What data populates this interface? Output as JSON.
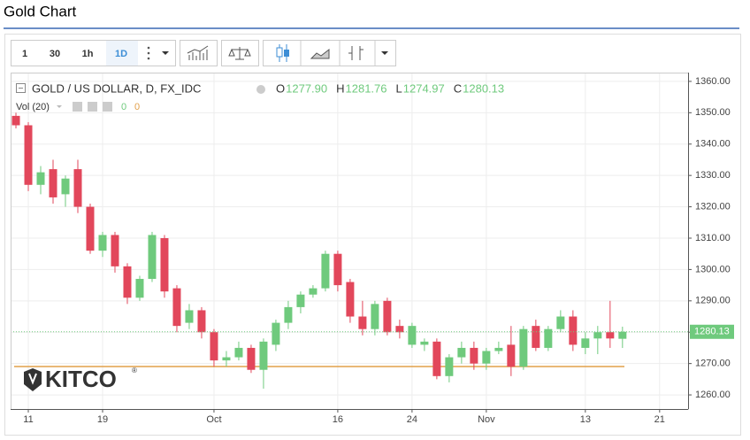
{
  "header": {
    "title": "Gold Chart"
  },
  "toolbar": {
    "intervals": [
      "1",
      "30",
      "1h",
      "1D"
    ]
  },
  "chart_data": {
    "type": "candlestick",
    "symbol": "GOLD / US DOLLAR, D, FX_IDC",
    "legend": [
      {
        "key": "O",
        "label": "1277.90"
      },
      {
        "key": "H",
        "label": "1281.76"
      },
      {
        "key": "L",
        "label": "1274.97"
      },
      {
        "key": "C",
        "label": "1280.13"
      }
    ],
    "volume_label": "Vol (20)",
    "volume_values": [
      "0",
      "0"
    ],
    "watermark": {
      "text": "KITCO",
      "mark": "®"
    },
    "colors": {
      "up": "#6fca7d",
      "down": "#e2475b"
    },
    "open": [
      1349,
      1346,
      1327,
      1332,
      1324,
      1332,
      1320,
      1306,
      1311,
      1301,
      1291,
      1297,
      1310,
      1294,
      1283,
      1287,
      1280,
      1271,
      1272,
      1275,
      1268,
      1276,
      1283,
      1288,
      1292,
      1294,
      1305,
      1296,
      1285,
      1281,
      1290,
      1282,
      1276,
      1276,
      1277,
      1266,
      1272,
      1275,
      1270,
      1274,
      1276,
      1269,
      1282,
      1275,
      1281,
      1285,
      1275,
      1278,
      1280,
      1277.9
    ],
    "high": [
      1350,
      1347,
      1333,
      1335,
      1330,
      1335,
      1321,
      1312,
      1312,
      1302,
      1298,
      1312,
      1311,
      1295,
      1289,
      1288,
      1281,
      1274,
      1277,
      1276,
      1278,
      1284,
      1290,
      1293,
      1295,
      1306,
      1306,
      1297,
      1290,
      1290,
      1291,
      1284,
      1283,
      1278,
      1278,
      1273,
      1277,
      1277,
      1275,
      1277,
      1282,
      1282,
      1284,
      1282,
      1287,
      1287,
      1280,
      1282,
      1290,
      1281.76
    ],
    "low": [
      1345,
      1325,
      1324,
      1321,
      1320,
      1318,
      1305,
      1304,
      1299,
      1289,
      1290,
      1296,
      1291,
      1280,
      1281,
      1278,
      1269,
      1269,
      1271,
      1267,
      1262,
      1274,
      1281,
      1286,
      1291,
      1293,
      1293,
      1283,
      1279,
      1279,
      1279,
      1278,
      1275,
      1274,
      1265,
      1264,
      1270,
      1268,
      1268,
      1273,
      1266,
      1268,
      1274,
      1274,
      1280,
      1274,
      1273,
      1273,
      1275,
      1274.97
    ],
    "close": [
      1346,
      1327,
      1331,
      1323,
      1329,
      1320,
      1306,
      1311,
      1301,
      1291,
      1297,
      1311,
      1293,
      1282,
      1287,
      1280,
      1271,
      1272,
      1275,
      1268,
      1277,
      1283,
      1288,
      1292,
      1294,
      1305,
      1295,
      1285,
      1281,
      1289,
      1280,
      1280,
      1282,
      1277,
      1266,
      1272,
      1275,
      1270,
      1274,
      1275,
      1269,
      1281,
      1275,
      1281,
      1285,
      1276,
      1278,
      1280,
      1278,
      1280.13
    ],
    "xlim": [
      -0.43,
      54.3
    ],
    "xticks": [
      {
        "value": 1,
        "label": "11"
      },
      {
        "value": 7,
        "label": "19"
      },
      {
        "value": 16,
        "label": "Oct"
      },
      {
        "value": 26,
        "label": "16"
      },
      {
        "value": 32,
        "label": "24"
      },
      {
        "value": 38,
        "label": "Nov"
      },
      {
        "value": 46,
        "label": "13"
      },
      {
        "value": 52,
        "label": "21"
      }
    ],
    "ylim": [
      1255.5,
      1362.8
    ],
    "yticks": [
      {
        "value": 1260,
        "label": "1260.00"
      },
      {
        "value": 1270,
        "label": "1270.00"
      },
      {
        "value": 1280,
        "label": "1280.00"
      },
      {
        "value": 1290,
        "label": "1290.00"
      },
      {
        "value": 1300,
        "label": "1300.00"
      },
      {
        "value": 1310,
        "label": "1310.00"
      },
      {
        "value": 1320,
        "label": "1320.00"
      },
      {
        "value": 1330,
        "label": "1330.00"
      },
      {
        "value": 1340,
        "label": "1340.00"
      },
      {
        "value": 1350,
        "label": "1350.00"
      },
      {
        "value": 1360,
        "label": "1360.00"
      }
    ],
    "grid": true
  }
}
